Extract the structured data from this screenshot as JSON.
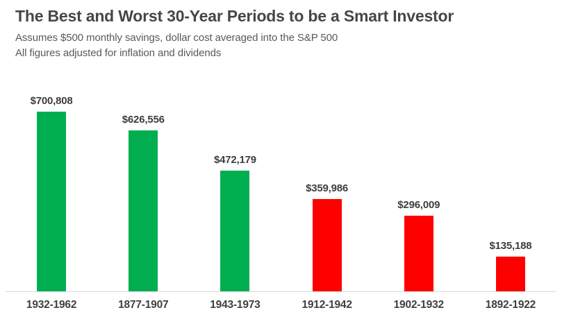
{
  "header": {
    "title": "The Best and Worst 30-Year Periods to be a Smart Investor",
    "subtitle1": "Assumes $500 monthly savings, dollar cost averaged into the S&P 500",
    "subtitle2": "All figures adjusted for inflation and dividends"
  },
  "colors": {
    "best_bar": "#00AE50",
    "worst_bar": "#FF0000",
    "title_text": "#464646",
    "subtitle_text": "#595959",
    "label_text": "#3D3D3D",
    "axis_line": "#D9D9D9",
    "background": "#FFFFFF"
  },
  "chart_data": {
    "type": "bar",
    "title": "The Best and Worst 30-Year Periods to be a Smart Investor",
    "subtitle": [
      "Assumes $500 monthly savings, dollar cost averaged into the S&P 500",
      "All figures adjusted for inflation and dividends"
    ],
    "categories": [
      "1932-1962",
      "1877-1907",
      "1943-1973",
      "1912-1942",
      "1902-1932",
      "1892-1922"
    ],
    "values": [
      700808,
      626556,
      472179,
      359986,
      296009,
      135188
    ],
    "value_labels": [
      "$700,808",
      "$626,556",
      "$472,179",
      "$359,986",
      "$296,009",
      "$135,188"
    ],
    "bar_colors": [
      "#00AE50",
      "#00AE50",
      "#00AE50",
      "#FF0000",
      "#FF0000",
      "#FF0000"
    ],
    "series_meaning": "Inflation- and dividend-adjusted ending value of $500/month invested in the S&P 500 over each 30-year period",
    "xlabel": "",
    "ylabel": "",
    "ylim": [
      0,
      785000
    ],
    "grid": false,
    "legend": false,
    "value_labels_position": "above-bars",
    "baseline_axis": "x-axis only, light gray"
  }
}
